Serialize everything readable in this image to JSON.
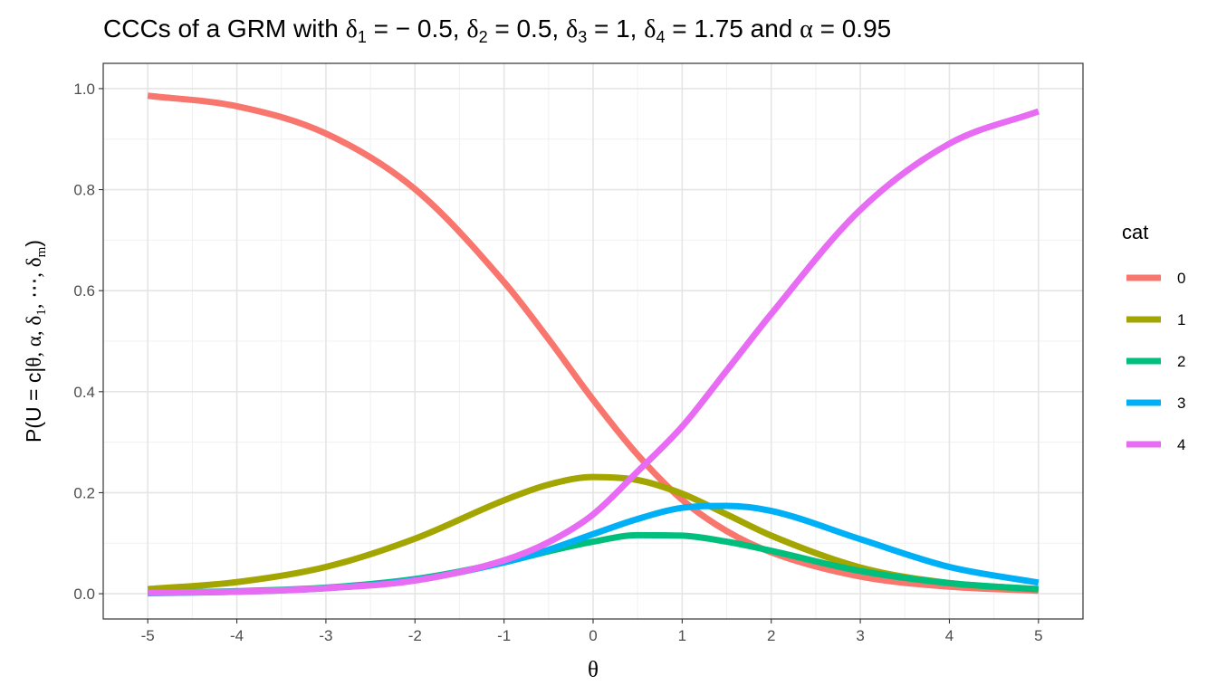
{
  "chart_data": {
    "type": "line",
    "title": {
      "prefix": "CCCs of a GRM with ",
      "d1": "δ",
      "d1_sub": "1",
      "d1_val": " = − 0.5, ",
      "d2": "δ",
      "d2_sub": "2",
      "d2_val": " = 0.5, ",
      "d3": "δ",
      "d3_sub": "3",
      "d3_val": " = 1, ",
      "d4": "δ",
      "d4_sub": "4",
      "d4_val": " = 1.75 and ",
      "alpha": "α",
      "alpha_val": " = 0.95"
    },
    "xlabel": "θ",
    "ylabel": {
      "p1": "P(U = c|",
      "theta": "θ, α, δ",
      "sub1": "1",
      "mid": ", ⋯, δ",
      "subm": "m",
      "p2": ")"
    },
    "xlim": [
      -5.5,
      5.5
    ],
    "ylim": [
      -0.05,
      1.05
    ],
    "x_ticks": [
      "-5",
      "-4",
      "-3",
      "-2",
      "-1",
      "0",
      "1",
      "2",
      "3",
      "4",
      "5"
    ],
    "y_ticks": [
      "0.0",
      "0.2",
      "0.4",
      "0.6",
      "0.8",
      "1.0"
    ],
    "grid": true,
    "legend_title": "cat",
    "legend_position": "right",
    "parameters": {
      "alpha": 0.95,
      "deltas": [
        -0.5,
        0.5,
        1,
        1.75
      ]
    },
    "series": [
      {
        "name": "0",
        "color": "#F8766D",
        "x": [
          -5,
          -4,
          -3,
          -2,
          -1,
          -0.5,
          0,
          0.5,
          1,
          1.5,
          2,
          3,
          4,
          5
        ],
        "y": [
          0.986,
          0.965,
          0.911,
          0.801,
          0.617,
          0.504,
          0.384,
          0.275,
          0.186,
          0.124,
          0.082,
          0.034,
          0.014,
          0.006
        ]
      },
      {
        "name": "1",
        "color": "#A3A500",
        "x": [
          -5,
          -4,
          -3,
          -2,
          -1,
          -0.5,
          0,
          0.5,
          1,
          1.5,
          2,
          3,
          4,
          5
        ],
        "y": [
          0.009,
          0.023,
          0.053,
          0.109,
          0.185,
          0.216,
          0.231,
          0.225,
          0.198,
          0.157,
          0.115,
          0.052,
          0.021,
          0.009
        ]
      },
      {
        "name": "2",
        "color": "#00BF7D",
        "x": [
          -5,
          -4,
          -3,
          -2,
          -1,
          -0.5,
          0,
          0.5,
          1,
          1.5,
          2,
          3,
          4,
          5
        ],
        "y": [
          0.002,
          0.005,
          0.012,
          0.029,
          0.062,
          0.084,
          0.103,
          0.116,
          0.115,
          0.103,
          0.085,
          0.045,
          0.021,
          0.009
        ]
      },
      {
        "name": "3",
        "color": "#00B0F6",
        "x": [
          -5,
          -4,
          -3,
          -2,
          -1,
          -0.5,
          0,
          0.5,
          1,
          1.5,
          2,
          3,
          4,
          5
        ],
        "y": [
          0.001,
          0.004,
          0.011,
          0.027,
          0.062,
          0.087,
          0.118,
          0.148,
          0.17,
          0.174,
          0.164,
          0.108,
          0.053,
          0.022
        ]
      },
      {
        "name": "4",
        "color": "#E76BF3",
        "x": [
          -5,
          -4,
          -3,
          -2,
          -1,
          -0.5,
          0,
          0.5,
          1,
          1.5,
          2,
          3,
          4,
          5
        ],
        "y": [
          0.002,
          0.004,
          0.011,
          0.026,
          0.066,
          0.102,
          0.157,
          0.242,
          0.331,
          0.442,
          0.554,
          0.76,
          0.891,
          0.955
        ]
      }
    ]
  }
}
